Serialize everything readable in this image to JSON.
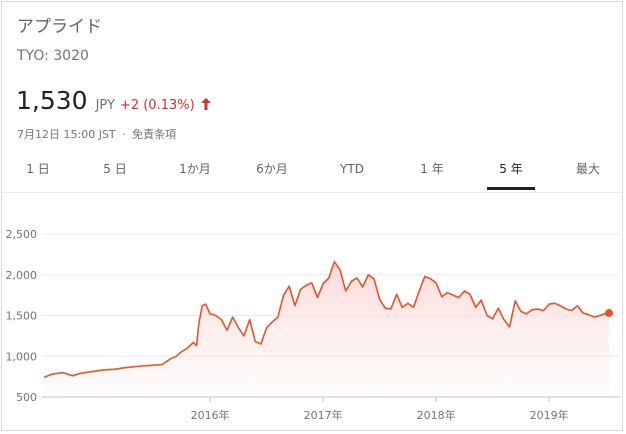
{
  "stock": {
    "name": "アプライド",
    "ticker": "TYO: 3020",
    "price": "1,530",
    "currency": "JPY",
    "change": "+2 (0.13%)",
    "change_direction": "up",
    "timestamp": "7月12日 15:00 JST",
    "separator": "·",
    "disclaimer": "免責条項"
  },
  "colors": {
    "accent_red": "#d93025",
    "line": "#e8532c",
    "fill": "#fce8e6"
  },
  "tabs": [
    {
      "label": "1 日",
      "active": false
    },
    {
      "label": "5 日",
      "active": false
    },
    {
      "label": "1か月",
      "active": false
    },
    {
      "label": "6か月",
      "active": false
    },
    {
      "label": "YTD",
      "active": false
    },
    {
      "label": "1 年",
      "active": false
    },
    {
      "label": "5 年",
      "active": true
    },
    {
      "label": "最大",
      "active": false
    }
  ],
  "chart_data": {
    "type": "area",
    "ylim": [
      500,
      2500
    ],
    "yticks": [
      500,
      1000,
      1500,
      2000,
      2500
    ],
    "ytick_labels": [
      "500",
      "1,000",
      "1,500",
      "2,000",
      "2,500"
    ],
    "xtick_labels": [
      "2016年",
      "2017年",
      "2018年",
      "2019年"
    ],
    "xtick_values": [
      2016.0,
      2017.0,
      2018.0,
      2019.0
    ],
    "grid": true,
    "series": [
      {
        "x": [
          2014.53,
          2014.6,
          2014.7,
          2014.78,
          2014.85,
          2014.95,
          2015.05,
          2015.15,
          2015.25,
          2015.32,
          2015.4,
          2015.5,
          2015.58,
          2015.65,
          2015.7,
          2015.75,
          2015.8,
          2015.85,
          2015.88,
          2015.9,
          2015.93,
          2015.96,
          2016.0,
          2016.05,
          2016.1,
          2016.15,
          2016.2,
          2016.25,
          2016.3,
          2016.35,
          2016.4,
          2016.45,
          2016.5,
          2016.55,
          2016.6,
          2016.65,
          2016.7,
          2016.75,
          2016.8,
          2016.85,
          2016.9,
          2016.95,
          2017.0,
          2017.05,
          2017.1,
          2017.15,
          2017.2,
          2017.25,
          2017.3,
          2017.35,
          2017.4,
          2017.45,
          2017.5,
          2017.55,
          2017.6,
          2017.65,
          2017.7,
          2017.75,
          2017.8,
          2017.85,
          2017.9,
          2017.95,
          2018.0,
          2018.05,
          2018.1,
          2018.15,
          2018.2,
          2018.25,
          2018.3,
          2018.35,
          2018.4,
          2018.45,
          2018.5,
          2018.55,
          2018.6,
          2018.65,
          2018.7,
          2018.75,
          2018.8,
          2018.85,
          2018.9,
          2018.95,
          2019.0,
          2019.05,
          2019.1,
          2019.15,
          2019.2,
          2019.25,
          2019.3,
          2019.35,
          2019.4,
          2019.45,
          2019.5,
          2019.53
        ],
        "values": [
          740,
          780,
          800,
          760,
          790,
          810,
          830,
          840,
          860,
          870,
          880,
          890,
          900,
          970,
          1000,
          1060,
          1100,
          1170,
          1130,
          1400,
          1620,
          1640,
          1520,
          1500,
          1450,
          1320,
          1480,
          1350,
          1250,
          1450,
          1180,
          1150,
          1350,
          1420,
          1480,
          1750,
          1860,
          1620,
          1820,
          1870,
          1900,
          1720,
          1890,
          1960,
          2160,
          2060,
          1800,
          1920,
          1960,
          1850,
          2000,
          1950,
          1700,
          1590,
          1580,
          1760,
          1600,
          1650,
          1600,
          1800,
          1980,
          1950,
          1900,
          1730,
          1780,
          1750,
          1720,
          1800,
          1760,
          1600,
          1690,
          1500,
          1460,
          1590,
          1450,
          1360,
          1680,
          1550,
          1520,
          1570,
          1580,
          1560,
          1640,
          1650,
          1620,
          1580,
          1560,
          1620,
          1530,
          1510,
          1480,
          1500,
          1525,
          1530
        ]
      }
    ]
  }
}
